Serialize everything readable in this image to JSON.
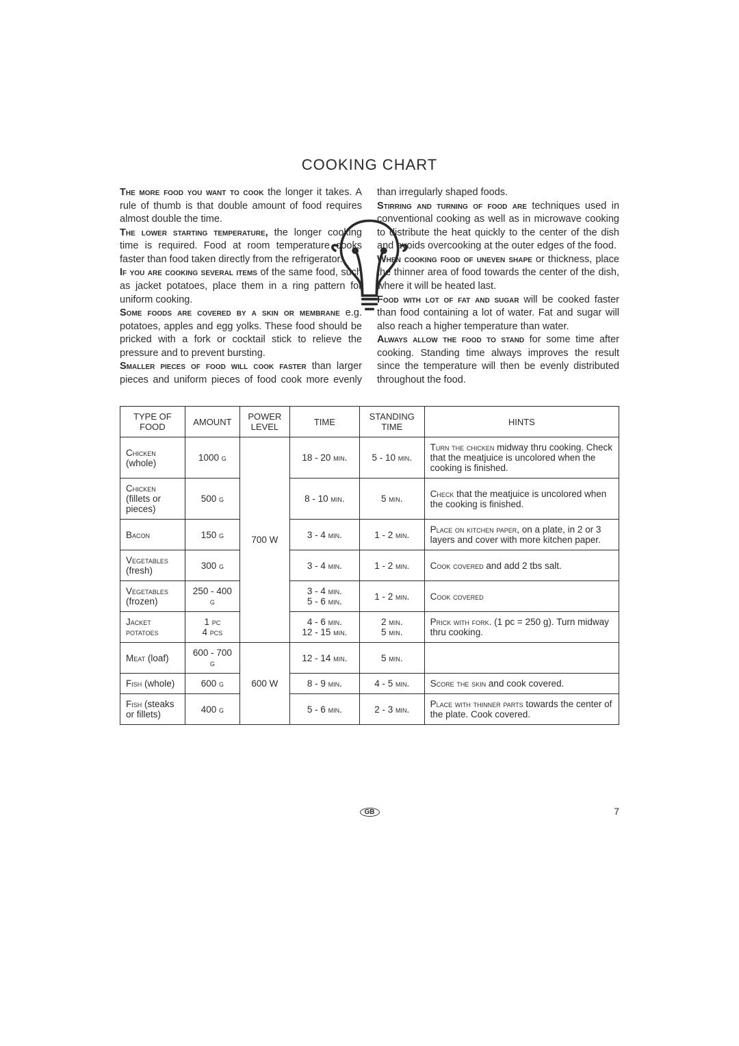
{
  "title": "COOKING CHART",
  "paragraphs": {
    "p1_lead": "The more food you want to cook",
    "p1_rest": " the longer it takes. A rule of thumb is that double amount of food requires almost double the time.",
    "p2_lead": "The lower starting temperature,",
    "p2_rest": " the longer cooking time is required. Food at room temperature cooks faster than food taken directly from the refrigerator.",
    "p3_lead": "If you are cooking several items",
    "p3_rest": " of the same food, such as jacket potatoes, place them in a ring pattern for uniform cooking.",
    "p4_lead": "Some foods are covered by a skin or membrane",
    "p4_rest": " e.g. potatoes, apples and egg yolks. These food should be pricked with a fork or cocktail stick to relieve the pressure and to prevent bursting.",
    "p5_lead": "Smaller pieces of food will cook faster",
    "p5_rest": " than larger pieces and uniform pieces of food cook more evenly than irregularly shaped foods.",
    "p6_lead": "Stirring and turning of food are",
    "p6_rest": " techniques used in conventional cooking as well as in microwave cooking to distribute the heat quickly to the center of the dish and avoids overcooking at the outer edges of the food.",
    "p7_lead": "When cooking food of uneven shape",
    "p7_rest": " or thickness, place the thinner area of food towards the center of the dish, where it will be heated last.",
    "p8_lead": "Food with lot of fat and sugar",
    "p8_rest": " will be cooked faster than food containing a lot of water. Fat and sugar will also reach a higher temperature than water.",
    "p9_lead": "Always allow the food to stand",
    "p9_rest": " for some time after cooking. Standing time always improves the result since the temperature will then be evenly distributed throughout the food."
  },
  "table": {
    "headers": {
      "food": "TYPE OF FOOD",
      "amount": "AMOUNT",
      "power": "POWER LEVEL",
      "time": "TIME",
      "standing": "STANDING TIME",
      "hints": "HINTS"
    },
    "power_levels": {
      "group1": "700 W",
      "group2": "600 W"
    },
    "rows": [
      {
        "food_sc": "Chicken",
        "food_rest": " (whole)",
        "amount": "1000 ",
        "amount_unit": "g",
        "time": "18 - 20 ",
        "time_unit": "min.",
        "standing": "5 - 10 ",
        "standing_unit": "min.",
        "hint_sc": "Turn the chicken",
        "hint_rest": " midway thru cooking. Check that the meatjuice is uncolored when the cooking is finished."
      },
      {
        "food_sc": "Chicken",
        "food_rest": " (fillets or pieces)",
        "amount": "500 ",
        "amount_unit": "g",
        "time": "8 - 10 ",
        "time_unit": "min.",
        "standing": "5 ",
        "standing_unit": "min.",
        "hint_sc": "Check",
        "hint_rest": " that the meatjuice is uncolored when the cooking is finished."
      },
      {
        "food_sc": "Bacon",
        "food_rest": "",
        "amount": "150 ",
        "amount_unit": "g",
        "time": "3 - 4 ",
        "time_unit": "min.",
        "standing": "1 - 2 ",
        "standing_unit": "min.",
        "hint_sc": "Place on kitchen paper,",
        "hint_rest": " on a plate, in 2 or 3 layers and cover with more kitchen paper."
      },
      {
        "food_sc": "Vegetables",
        "food_rest": " (fresh)",
        "amount": "300 ",
        "amount_unit": "g",
        "time": "3 - 4 ",
        "time_unit": "min.",
        "standing": "1 - 2 ",
        "standing_unit": "min.",
        "hint_sc": "Cook covered",
        "hint_rest": " and add 2 tbs salt."
      },
      {
        "food_sc": "Vegetables",
        "food_rest": " (frozen)",
        "amount": "250 - 400 ",
        "amount_unit": "g",
        "time": "3 - 4 ",
        "time_unit": "min.",
        "time2": "5 - 6 ",
        "time2_unit": "min.",
        "standing": "1 - 2 ",
        "standing_unit": "min.",
        "hint_sc": "Cook covered",
        "hint_rest": ""
      },
      {
        "food_sc": "Jacket potatoes",
        "food_rest": "",
        "amount": "1 ",
        "amount_unit": "pc",
        "amount2": "4 ",
        "amount2_unit": "pcs",
        "time": "4 - 6 ",
        "time_unit": "min.",
        "time2": "12 - 15 ",
        "time2_unit": "min.",
        "standing": "2 ",
        "standing_unit": "min.",
        "standing2": "5 ",
        "standing2_unit": "min.",
        "hint_sc": "Prick with fork.",
        "hint_rest": " (1 pc = 250 g). Turn midway thru cooking."
      },
      {
        "food_sc": "Meat",
        "food_rest": " (loaf)",
        "amount": "600 - 700 ",
        "amount_unit": "g",
        "time": "12 - 14 ",
        "time_unit": "min.",
        "standing": "5 ",
        "standing_unit": "min.",
        "hint_sc": "",
        "hint_rest": ""
      },
      {
        "food_sc": "Fish",
        "food_rest": " (whole)",
        "amount": "600 ",
        "amount_unit": "g",
        "time": "8 - 9 ",
        "time_unit": "min.",
        "standing": "4 - 5 ",
        "standing_unit": "min.",
        "hint_sc": "Score the skin",
        "hint_rest": " and cook covered."
      },
      {
        "food_sc": "Fish",
        "food_rest": " (steaks or fillets)",
        "amount": "400 ",
        "amount_unit": "g",
        "time": "5 - 6 ",
        "time_unit": "min.",
        "standing": "2 - 3 ",
        "standing_unit": "min.",
        "hint_sc": "Place with thinner parts",
        "hint_rest": " towards the center of the plate. Cook covered."
      }
    ]
  },
  "footer": {
    "lang": "GB",
    "page_num": "7"
  },
  "colors": {
    "text": "#2a2a2a",
    "background": "#ffffff",
    "border": "#2a2a2a"
  }
}
